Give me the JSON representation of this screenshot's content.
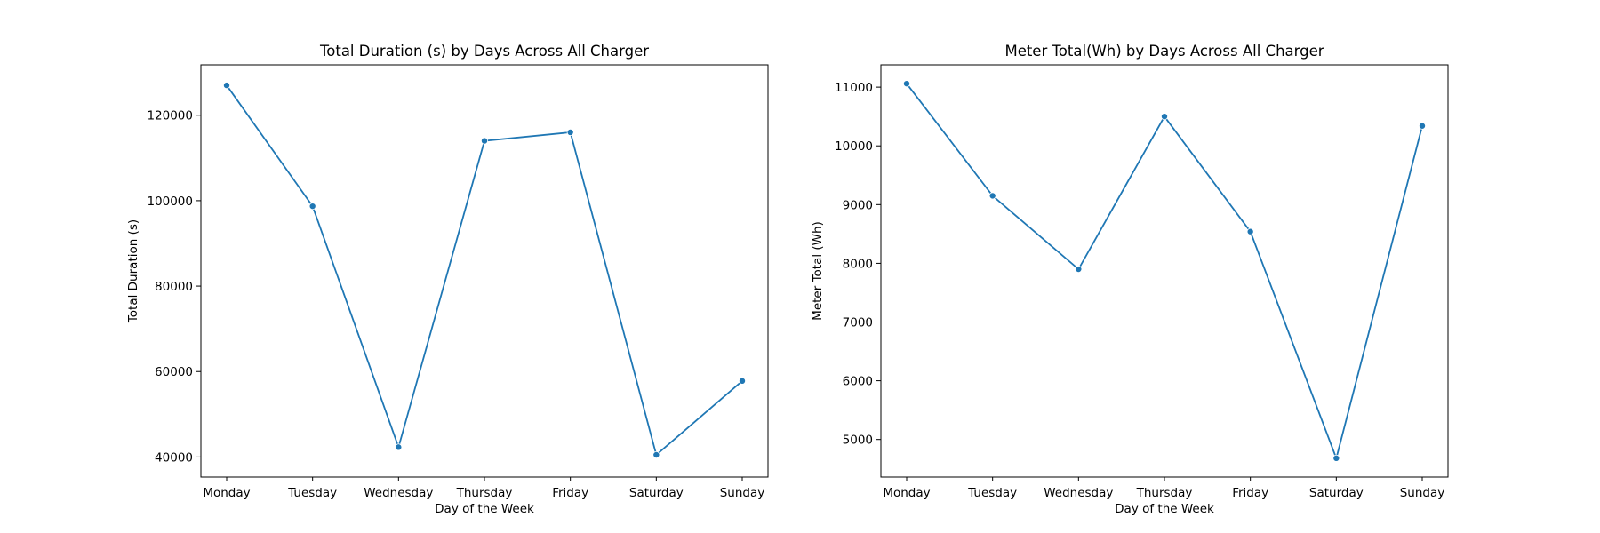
{
  "chart_data": [
    {
      "type": "line",
      "title": "Total Duration (s) by Days Across All Charger",
      "xlabel": "Day of the Week",
      "ylabel": "Total Duration (s)",
      "categories": [
        "Monday",
        "Tuesday",
        "Wednesday",
        "Thursday",
        "Friday",
        "Saturday",
        "Sunday"
      ],
      "series": [
        {
          "values": [
            127000,
            98700,
            42300,
            114000,
            116000,
            40500,
            57800
          ]
        }
      ],
      "ylim": [
        35300,
        131800
      ],
      "yticks": [
        40000,
        60000,
        80000,
        100000,
        120000
      ],
      "ytick_labels": [
        "40000",
        "60000",
        "80000",
        "100000",
        "120000"
      ],
      "grid": false,
      "color": "#1f77b4"
    },
    {
      "type": "line",
      "title": "Meter Total(Wh) by Days Across All Charger",
      "xlabel": "Day of the Week",
      "ylabel": "Meter Total (Wh)",
      "categories": [
        "Monday",
        "Tuesday",
        "Wednesday",
        "Thursday",
        "Friday",
        "Saturday",
        "Sunday"
      ],
      "series": [
        {
          "values": [
            11060,
            9150,
            7900,
            10500,
            8540,
            4680,
            10340
          ]
        }
      ],
      "ylim": [
        4360,
        11380
      ],
      "yticks": [
        5000,
        6000,
        7000,
        8000,
        9000,
        10000,
        11000
      ],
      "ytick_labels": [
        "5000",
        "6000",
        "7000",
        "8000",
        "9000",
        "10000",
        "11000"
      ],
      "grid": false,
      "color": "#1f77b4"
    }
  ]
}
